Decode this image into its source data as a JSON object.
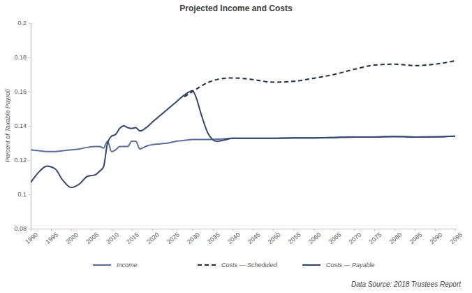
{
  "chart_data": {
    "type": "line",
    "title": "Projected Income and Costs",
    "y_label": "Percent of Taxable Payroll",
    "source": "Data Source: 2018 Trustees Report",
    "x": [
      1990,
      1992,
      1994,
      1996,
      1998,
      2000,
      2002,
      2004,
      2006,
      2007,
      2008,
      2009,
      2010,
      2011,
      2012,
      2013,
      2014,
      2015,
      2016,
      2017,
      2018,
      2019,
      2020,
      2022,
      2024,
      2026,
      2028,
      2030,
      2031,
      2032,
      2034,
      2036,
      2038,
      2040,
      2045,
      2050,
      2055,
      2060,
      2065,
      2070,
      2075,
      2080,
      2085,
      2090,
      2095
    ],
    "series": [
      {
        "name": "Income",
        "color": "#5b6e9b",
        "line_style": "solid",
        "values": [
          0.126,
          0.1255,
          0.125,
          0.125,
          0.1255,
          0.126,
          0.1265,
          0.1275,
          0.128,
          0.128,
          0.127,
          0.131,
          0.125,
          0.126,
          0.128,
          0.128,
          0.128,
          0.131,
          0.131,
          0.1265,
          0.1275,
          0.1285,
          0.129,
          0.1295,
          0.13,
          0.131,
          0.1315,
          0.132,
          0.132,
          0.132,
          0.132,
          0.1322,
          0.1325,
          0.1328,
          0.1328,
          0.1328,
          0.133,
          0.133,
          0.1332,
          0.1335,
          0.1335,
          0.1338,
          0.1335,
          0.1336,
          0.134
        ]
      },
      {
        "name": "Costs — Scheduled",
        "color": "#1f2a44",
        "line_style": "dashed",
        "values": [
          null,
          null,
          null,
          null,
          null,
          null,
          null,
          null,
          null,
          null,
          null,
          null,
          null,
          null,
          null,
          null,
          null,
          null,
          null,
          null,
          null,
          null,
          null,
          null,
          null,
          null,
          0.157,
          0.16,
          0.1615,
          0.163,
          0.1655,
          0.167,
          0.1678,
          0.168,
          0.167,
          0.1655,
          0.166,
          0.1678,
          0.17,
          0.173,
          0.1755,
          0.176,
          0.1752,
          0.176,
          0.178
        ]
      },
      {
        "name": "Costs — Payable",
        "color": "#34456d",
        "line_style": "solid",
        "values": [
          0.107,
          0.113,
          0.1165,
          0.115,
          0.108,
          0.104,
          0.106,
          0.1105,
          0.1115,
          0.1135,
          0.116,
          0.13,
          0.134,
          0.135,
          0.1385,
          0.14,
          0.139,
          0.1385,
          0.139,
          0.137,
          0.138,
          0.1398,
          0.142,
          0.146,
          0.15,
          0.154,
          0.158,
          0.1605,
          0.156,
          0.148,
          0.135,
          0.131,
          0.1318,
          0.1328,
          0.1328,
          0.1328,
          0.133,
          0.133,
          0.1332,
          0.1335,
          0.1335,
          0.1338,
          0.1335,
          0.1336,
          0.134
        ]
      }
    ],
    "xlim": [
      1990,
      2095
    ],
    "xticks": [
      1990,
      1995,
      2000,
      2005,
      2010,
      2015,
      2020,
      2025,
      2030,
      2035,
      2040,
      2045,
      2050,
      2055,
      2060,
      2065,
      2070,
      2075,
      2080,
      2085,
      2090,
      2095
    ],
    "ylim": [
      0.08,
      0.2
    ],
    "yticks": [
      0.08,
      0.1,
      0.12,
      0.14,
      0.16,
      0.18,
      0.2
    ],
    "grid": false,
    "legend": "bottom"
  }
}
